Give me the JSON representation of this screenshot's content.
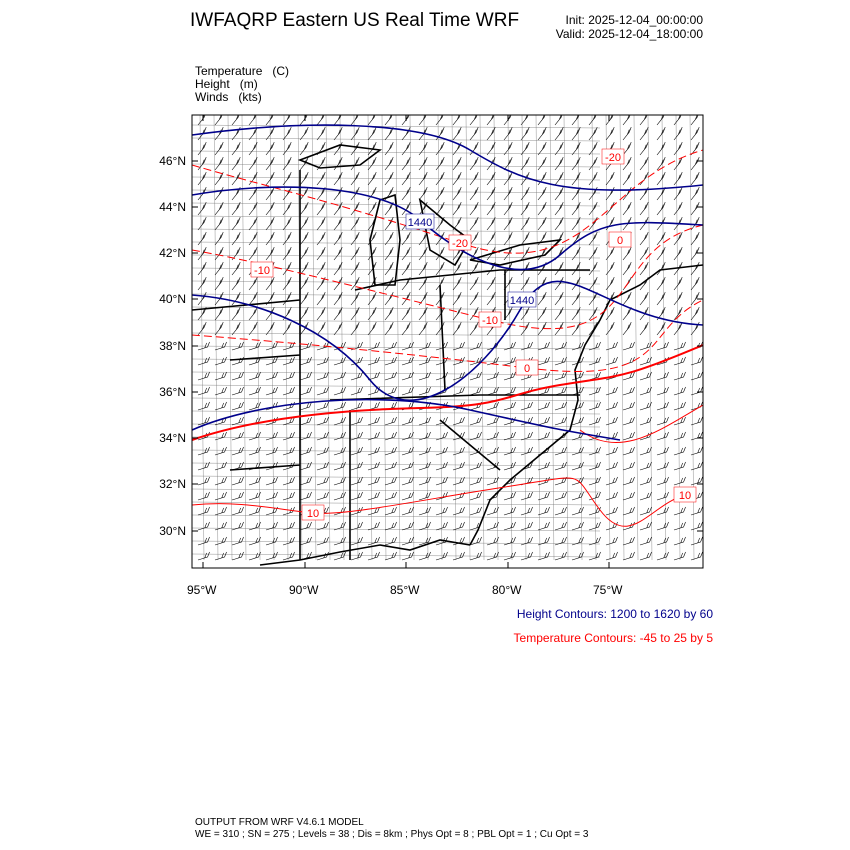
{
  "header": {
    "title": "IWFAQRP Eastern US Real Time WRF",
    "init": "Init: 2025-12-04_00:00:00",
    "valid": "Valid: 2025-12-04_18:00:00"
  },
  "fields": [
    {
      "name": "Temperature",
      "unit": "(C)"
    },
    {
      "name": "Height",
      "unit": "(m)"
    },
    {
      "name": "Winds",
      "unit": "(kts)"
    }
  ],
  "map": {
    "lat_ticks": [
      "46°N",
      "44°N",
      "42°N",
      "40°N",
      "38°N",
      "36°N",
      "34°N",
      "32°N",
      "30°N"
    ],
    "lon_ticks": [
      "95°W",
      "90°W",
      "85°W",
      "80°W",
      "75°W"
    ],
    "height_labels": [
      "1440",
      "1440"
    ],
    "temp_labels": [
      "-20",
      "-20",
      "-10",
      "-10",
      "0",
      "0",
      "10",
      "10"
    ],
    "colors": {
      "height": "#00008b",
      "temperature": "#ff0000",
      "borders": "#000000"
    }
  },
  "legend": {
    "height": "Height Contours: 1200 to 1620 by 60",
    "temperature": "Temperature Contours: -45 to 25 by 5"
  },
  "footer": {
    "line1": "OUTPUT FROM WRF V4.6.1 MODEL",
    "line2": "WE = 310 ; SN = 275 ; Levels = 38 ; Dis = 8km ; Phys Opt = 8 ; PBL Opt = 1 ; Cu Opt = 3"
  }
}
